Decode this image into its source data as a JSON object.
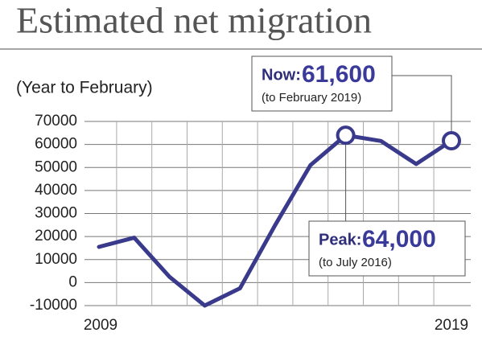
{
  "chart_data": {
    "type": "line",
    "title": "Estimated net migration",
    "subtitle": "(Year to February)",
    "categories": [
      "2009",
      null,
      null,
      null,
      null,
      null,
      null,
      null,
      null,
      null,
      "2019"
    ],
    "values": [
      15500,
      19500,
      2500,
      -10000,
      -2500,
      25000,
      51000,
      64000,
      61500,
      51500,
      61600
    ],
    "color": "#3a3a8c",
    "ylim": [
      -10000,
      70000
    ],
    "yticks": [
      -10000,
      0,
      10000,
      20000,
      30000,
      40000,
      50000,
      60000,
      70000
    ],
    "grid": true,
    "annotations": [
      {
        "label": "Now:",
        "figure": "61,600",
        "note": "(to February 2019)"
      },
      {
        "label": "Peak:",
        "figure": "64,000",
        "note": "(to July 2016)"
      }
    ]
  }
}
